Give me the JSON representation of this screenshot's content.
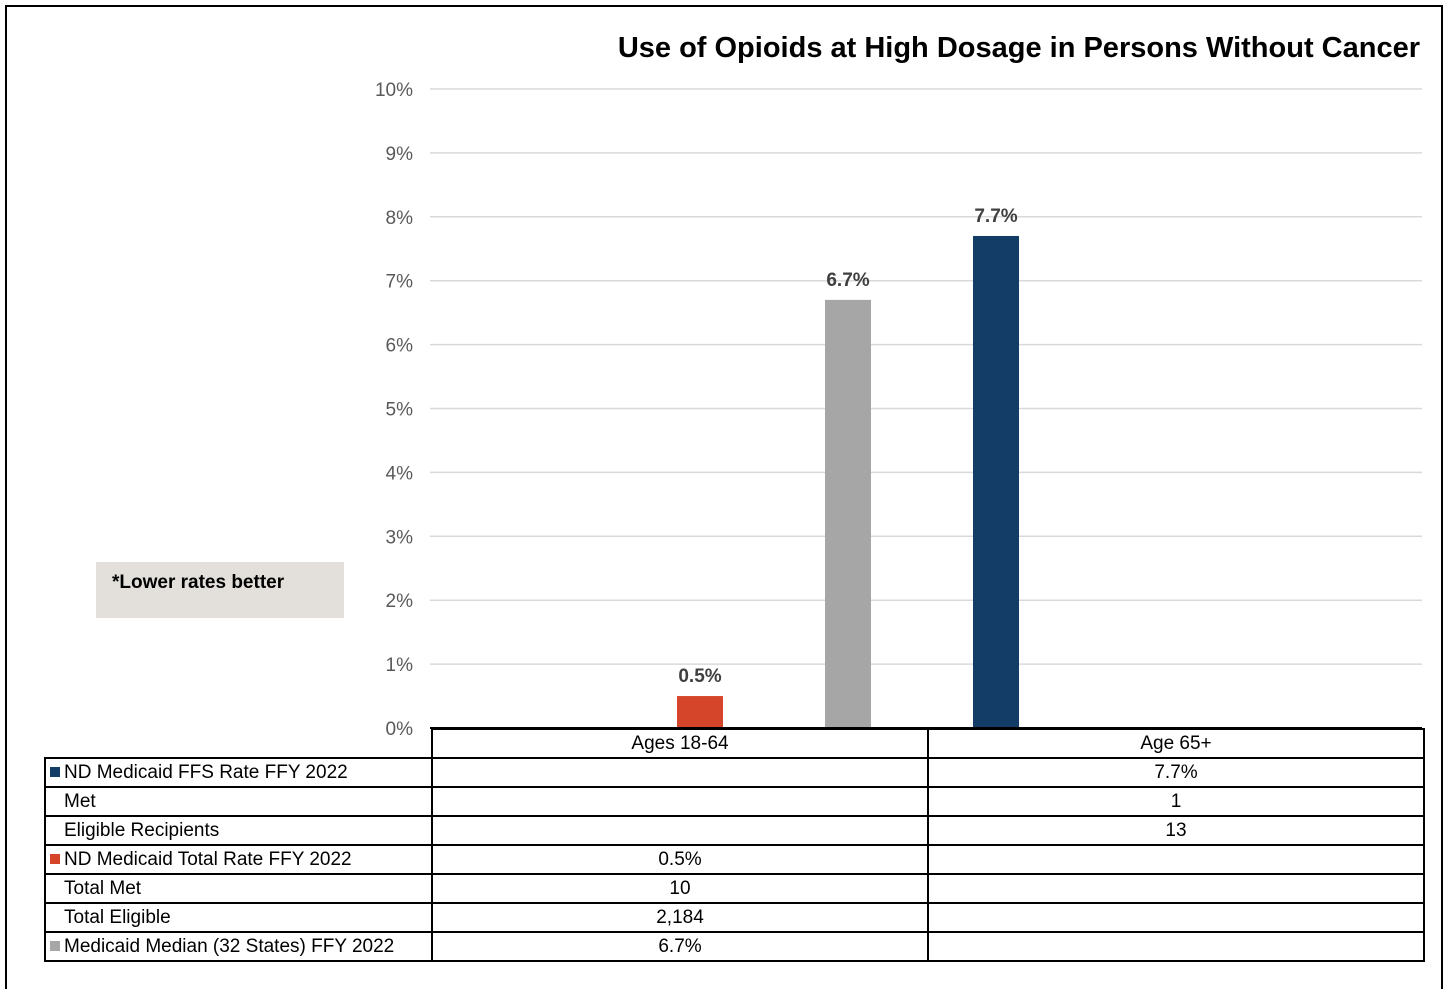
{
  "chart_data": {
    "type": "bar",
    "title": "Use of Opioids at High Dosage in Persons Without Cancer",
    "annotation": "*Lower rates better",
    "ylim": [
      0,
      10
    ],
    "y_ticks": [
      "0%",
      "1%",
      "2%",
      "3%",
      "4%",
      "5%",
      "6%",
      "7%",
      "8%",
      "9%",
      "10%"
    ],
    "grid": true,
    "categories": [
      "Ages 18-64",
      "Age 65+"
    ],
    "series": [
      {
        "name": "ND Medicaid FFS Rate FFY 2022",
        "color": "#133c66",
        "values": [
          null,
          7.7
        ],
        "labels": [
          "",
          "7.7%"
        ]
      },
      {
        "name": "ND Medicaid Total Rate FFY 2022",
        "color": "#d4452a",
        "values": [
          0.5,
          null
        ],
        "labels": [
          "0.5%",
          ""
        ]
      },
      {
        "name": "Medicaid Median (32 States) FFY 2022",
        "color": "#a6a6a6",
        "values": [
          6.7,
          null
        ],
        "labels": [
          "6.7%",
          ""
        ]
      }
    ],
    "table_rows": [
      {
        "label": "ND Medicaid FFS Rate FFY 2022",
        "swatch": "#133c66",
        "cells": [
          "",
          "7.7%"
        ]
      },
      {
        "label": "Met",
        "swatch": null,
        "cells": [
          "",
          "1"
        ]
      },
      {
        "label": "Eligible Recipients",
        "swatch": null,
        "cells": [
          "",
          "13"
        ]
      },
      {
        "label": "ND Medicaid Total Rate FFY 2022",
        "swatch": "#d4452a",
        "cells": [
          "0.5%",
          ""
        ]
      },
      {
        "label": "Total Met",
        "swatch": null,
        "cells": [
          "10",
          ""
        ]
      },
      {
        "label": "Total Eligible",
        "swatch": null,
        "cells": [
          "2,184",
          ""
        ]
      },
      {
        "label": "Medicaid Median (32 States) FFY 2022",
        "swatch": "#a6a6a6",
        "cells": [
          "6.7%",
          ""
        ]
      }
    ]
  }
}
